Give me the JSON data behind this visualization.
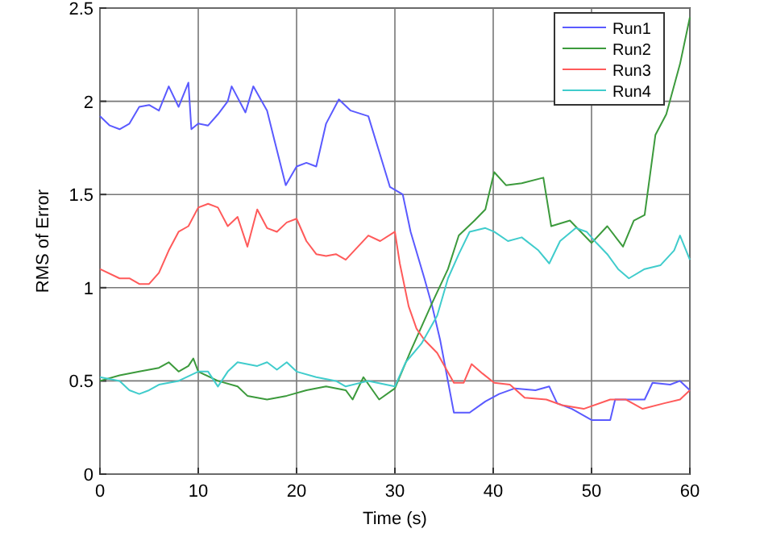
{
  "chart_data": {
    "type": "line",
    "xlabel": "Time (s)",
    "ylabel": "RMS of Error",
    "xlim": [
      0,
      60
    ],
    "xticks": [
      0,
      10,
      20,
      30,
      40,
      50,
      60
    ],
    "ylim": [
      0,
      2.5
    ],
    "yticks": [
      0,
      0.5,
      1,
      1.5,
      2,
      2.5
    ],
    "grid": true,
    "legend": "top right",
    "series": [
      {
        "name": "Run1",
        "color": "#5a5aff",
        "x": [
          0,
          1,
          2,
          3,
          4,
          5,
          6,
          7,
          8,
          9,
          9.3,
          10,
          11,
          12,
          13,
          13.4,
          14.8,
          15.6,
          17,
          17.8,
          18.9,
          20,
          21,
          22,
          23,
          24.3,
          25.5,
          27.3,
          28.4,
          29.5,
          30.8,
          31.6,
          33,
          33.8,
          34.6,
          36,
          37.6,
          39.2,
          40.6,
          42.2,
          44.3,
          45.7,
          46.5,
          48,
          50,
          51.9,
          52.4,
          55.4,
          56.2,
          58,
          59,
          60
        ],
        "values": [
          1.92,
          1.87,
          1.85,
          1.88,
          1.97,
          1.98,
          1.95,
          2.08,
          1.97,
          2.1,
          1.85,
          1.88,
          1.87,
          1.93,
          2.0,
          2.08,
          1.94,
          2.08,
          1.95,
          1.78,
          1.55,
          1.65,
          1.67,
          1.65,
          1.88,
          2.01,
          1.95,
          1.92,
          1.73,
          1.54,
          1.5,
          1.3,
          1.05,
          0.9,
          0.72,
          0.33,
          0.33,
          0.39,
          0.43,
          0.46,
          0.45,
          0.47,
          0.38,
          0.35,
          0.29,
          0.29,
          0.4,
          0.4,
          0.49,
          0.48,
          0.5,
          0.45
        ]
      },
      {
        "name": "Run2",
        "color": "#3c9a3c",
        "x": [
          0,
          2,
          4,
          6,
          7,
          8,
          9,
          9.5,
          10,
          12,
          14,
          15,
          17,
          19,
          21,
          23,
          25,
          25.7,
          26.8,
          28.4,
          30,
          31.6,
          33.8,
          35.4,
          36.5,
          38.1,
          39.2,
          40.1,
          41.3,
          42.9,
          45.1,
          45.9,
          47.8,
          50,
          51.6,
          53.2,
          54.3,
          55.4,
          56.5,
          57.6,
          59,
          60
        ],
        "values": [
          0.5,
          0.53,
          0.55,
          0.57,
          0.6,
          0.55,
          0.58,
          0.62,
          0.55,
          0.5,
          0.47,
          0.42,
          0.4,
          0.42,
          0.45,
          0.47,
          0.45,
          0.4,
          0.52,
          0.4,
          0.46,
          0.66,
          0.92,
          1.1,
          1.28,
          1.36,
          1.42,
          1.62,
          1.55,
          1.56,
          1.59,
          1.33,
          1.36,
          1.24,
          1.33,
          1.22,
          1.36,
          1.39,
          1.82,
          1.93,
          2.2,
          2.45
        ]
      },
      {
        "name": "Run3",
        "color": "#ff5a5a",
        "x": [
          0,
          2,
          3,
          4,
          5,
          6,
          7,
          8,
          9,
          10,
          11,
          12,
          13,
          14,
          15,
          16,
          17,
          18,
          19,
          20,
          21,
          22,
          23,
          24,
          25,
          27.3,
          28.5,
          30,
          30.5,
          31.4,
          32.2,
          33,
          34.3,
          36,
          37,
          37.8,
          38.9,
          40.1,
          41.7,
          43.2,
          45.4,
          47,
          49.2,
          51.9,
          53.5,
          55.2,
          57.4,
          59,
          60
        ],
        "values": [
          1.1,
          1.05,
          1.05,
          1.02,
          1.02,
          1.08,
          1.2,
          1.3,
          1.33,
          1.43,
          1.45,
          1.43,
          1.33,
          1.38,
          1.22,
          1.42,
          1.32,
          1.3,
          1.35,
          1.37,
          1.25,
          1.18,
          1.17,
          1.18,
          1.15,
          1.28,
          1.25,
          1.3,
          1.13,
          0.9,
          0.78,
          0.72,
          0.65,
          0.49,
          0.49,
          0.59,
          0.54,
          0.49,
          0.48,
          0.41,
          0.4,
          0.37,
          0.35,
          0.4,
          0.4,
          0.35,
          0.38,
          0.4,
          0.45
        ]
      },
      {
        "name": "Run4",
        "color": "#40cccc",
        "x": [
          0,
          2,
          3,
          4,
          5,
          6,
          8,
          10,
          11,
          12,
          13,
          14,
          16,
          17,
          18,
          19,
          20,
          22,
          24,
          25,
          27.3,
          30,
          31.1,
          32.7,
          34.3,
          35.4,
          36.5,
          37.6,
          39.2,
          40.1,
          41.5,
          42.9,
          44.6,
          45.7,
          46.8,
          48.4,
          49.5,
          50.5,
          51.6,
          52.7,
          53.8,
          55.4,
          57,
          58.4,
          59,
          60
        ],
        "values": [
          0.52,
          0.5,
          0.45,
          0.43,
          0.45,
          0.48,
          0.5,
          0.55,
          0.55,
          0.47,
          0.55,
          0.6,
          0.58,
          0.6,
          0.56,
          0.6,
          0.55,
          0.52,
          0.5,
          0.47,
          0.5,
          0.47,
          0.6,
          0.7,
          0.85,
          1.05,
          1.18,
          1.3,
          1.32,
          1.3,
          1.25,
          1.27,
          1.2,
          1.13,
          1.25,
          1.32,
          1.3,
          1.24,
          1.18,
          1.1,
          1.05,
          1.1,
          1.12,
          1.2,
          1.28,
          1.15
        ]
      }
    ]
  }
}
